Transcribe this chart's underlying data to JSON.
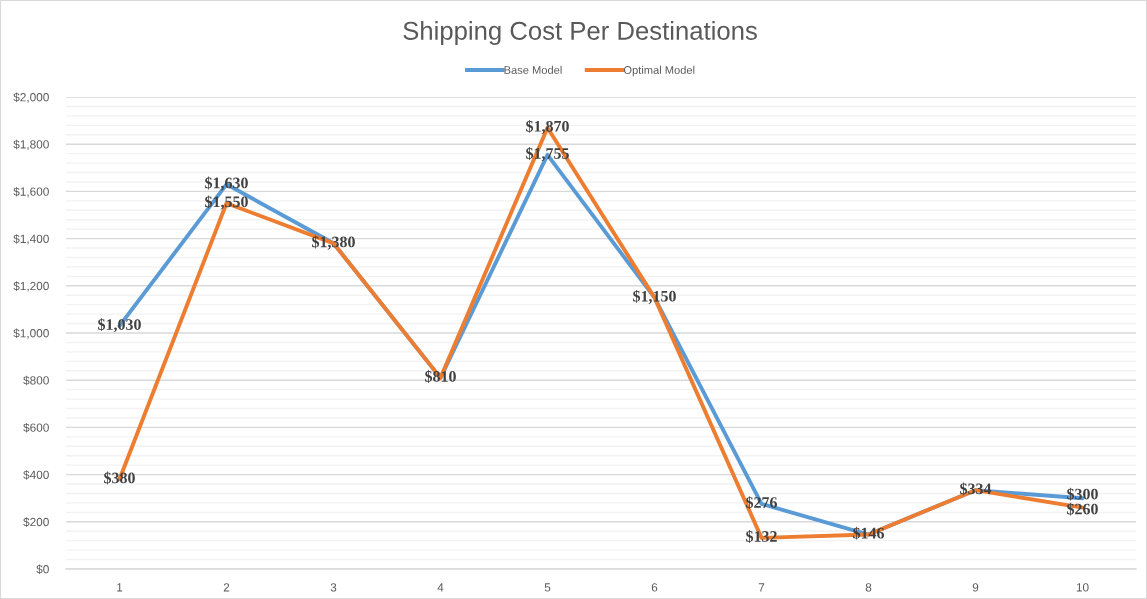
{
  "chart_data": {
    "type": "line",
    "title": "Shipping Cost Per Destinations",
    "categories": [
      "1",
      "2",
      "3",
      "4",
      "5",
      "6",
      "7",
      "8",
      "9",
      "10"
    ],
    "series": [
      {
        "name": "Base Model",
        "color": "#5b9bd5",
        "values": [
          1030,
          1630,
          1380,
          810,
          1755,
          1150,
          276,
          146,
          334,
          300
        ],
        "value_labels": [
          "$1,030",
          "$1,630",
          "$1,380",
          "$810",
          "$1,755",
          "$1,150",
          "$276",
          "$146",
          "$334",
          "$300"
        ]
      },
      {
        "name": "Optimal Model",
        "color": "#ed7d31",
        "values": [
          380,
          1550,
          1380,
          810,
          1870,
          1150,
          132,
          146,
          334,
          260
        ],
        "value_labels": [
          "$380",
          "$1,550",
          null,
          null,
          "$1,870",
          null,
          "$132",
          null,
          null,
          "$260"
        ]
      }
    ],
    "ylim": [
      0,
      2000
    ],
    "yticks": [
      {
        "value": 0,
        "label": "$0"
      },
      {
        "value": 40,
        "label": null
      },
      {
        "value": 80,
        "label": null
      },
      {
        "value": 120,
        "label": null
      },
      {
        "value": 160,
        "label": null
      },
      {
        "value": 200,
        "label": "$200"
      },
      {
        "value": 240,
        "label": null
      },
      {
        "value": 280,
        "label": null
      },
      {
        "value": 320,
        "label": null
      },
      {
        "value": 360,
        "label": null
      },
      {
        "value": 400,
        "label": "$400"
      },
      {
        "value": 440,
        "label": null
      },
      {
        "value": 480,
        "label": null
      },
      {
        "value": 520,
        "label": null
      },
      {
        "value": 560,
        "label": null
      },
      {
        "value": 600,
        "label": "$600"
      },
      {
        "value": 640,
        "label": null
      },
      {
        "value": 680,
        "label": null
      },
      {
        "value": 720,
        "label": null
      },
      {
        "value": 760,
        "label": null
      },
      {
        "value": 800,
        "label": "$800"
      },
      {
        "value": 840,
        "label": null
      },
      {
        "value": 880,
        "label": null
      },
      {
        "value": 920,
        "label": null
      },
      {
        "value": 960,
        "label": null
      },
      {
        "value": 1000,
        "label": "$1,000"
      },
      {
        "value": 1040,
        "label": null
      },
      {
        "value": 1080,
        "label": null
      },
      {
        "value": 1120,
        "label": null
      },
      {
        "value": 1160,
        "label": null
      },
      {
        "value": 1200,
        "label": "$1,200"
      },
      {
        "value": 1240,
        "label": null
      },
      {
        "value": 1280,
        "label": null
      },
      {
        "value": 1320,
        "label": null
      },
      {
        "value": 1360,
        "label": null
      },
      {
        "value": 1400,
        "label": "$1,400"
      },
      {
        "value": 1440,
        "label": null
      },
      {
        "value": 1480,
        "label": null
      },
      {
        "value": 1520,
        "label": null
      },
      {
        "value": 1560,
        "label": null
      },
      {
        "value": 1600,
        "label": "$1,600"
      },
      {
        "value": 1640,
        "label": null
      },
      {
        "value": 1680,
        "label": null
      },
      {
        "value": 1720,
        "label": null
      },
      {
        "value": 1760,
        "label": null
      },
      {
        "value": 1800,
        "label": "$1,800"
      },
      {
        "value": 1840,
        "label": null
      },
      {
        "value": 1880,
        "label": null
      },
      {
        "value": 1920,
        "label": null
      },
      {
        "value": 1960,
        "label": null
      },
      {
        "value": 2000,
        "label": "$2,000"
      }
    ],
    "grid": "y",
    "legend": "top"
  }
}
